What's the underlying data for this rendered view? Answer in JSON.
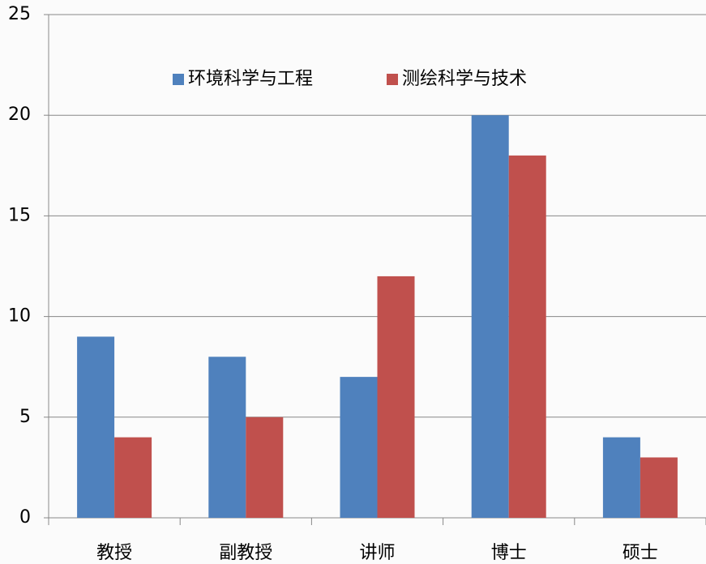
{
  "chart_data": {
    "type": "bar",
    "categories": [
      "教授",
      "副教授",
      "讲师",
      "博士",
      "硕士"
    ],
    "series": [
      {
        "name": "环境科学与工程",
        "color": "#4f81bd",
        "values": [
          9,
          8,
          7,
          20,
          4
        ]
      },
      {
        "name": "测绘科学与技术",
        "color": "#c0504d",
        "values": [
          4,
          5,
          12,
          18,
          3
        ]
      }
    ],
    "ylim": [
      0,
      25
    ],
    "yticks": [
      0,
      5,
      10,
      15,
      20,
      25
    ],
    "grid": true,
    "legend": "top"
  }
}
